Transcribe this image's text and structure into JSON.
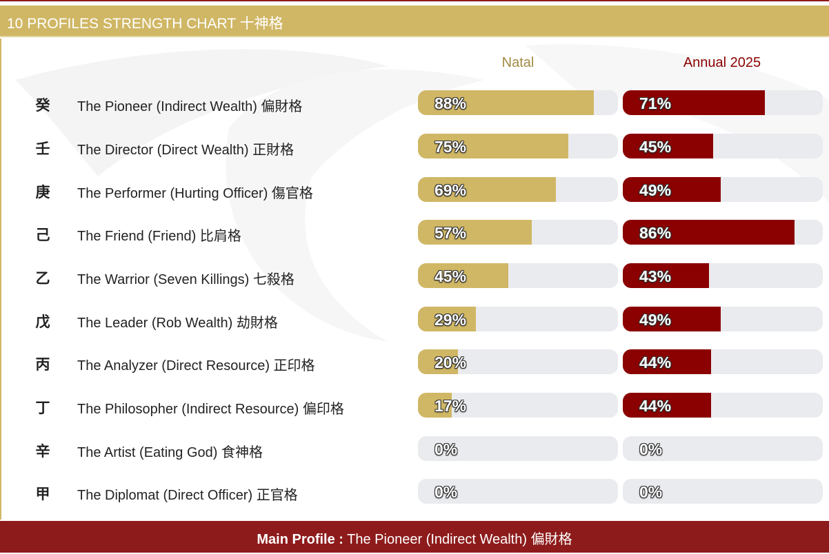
{
  "header": {
    "title": "10 PROFILES STRENGTH CHART 十神格"
  },
  "columns": {
    "natal": "Natal",
    "annual": "Annual 2025"
  },
  "colors": {
    "natal": "#d0b765",
    "annual": "#8b0000",
    "track": "#e9ebee",
    "footer": "#8e1b1b"
  },
  "chart_data": {
    "type": "bar",
    "title": "10 PROFILES STRENGTH CHART 十神格",
    "categories": [
      "The Pioneer (Indirect Wealth) 偏財格",
      "The Director (Direct Wealth) 正財格",
      "The Performer (Hurting Officer) 傷官格",
      "The Friend (Friend) 比肩格",
      "The Warrior (Seven Killings) 七殺格",
      "The Leader (Rob Wealth) 劫財格",
      "The Analyzer (Direct Resource) 正印格",
      "The Philosopher (Indirect Resource) 偏印格",
      "The Artist (Eating God) 食神格",
      "The Diplomat (Direct Officer) 正官格"
    ],
    "stems": [
      "癸",
      "壬",
      "庚",
      "己",
      "乙",
      "戊",
      "丙",
      "丁",
      "辛",
      "甲"
    ],
    "series": [
      {
        "name": "Natal",
        "values": [
          88,
          75,
          69,
          57,
          45,
          29,
          20,
          17,
          0,
          0
        ],
        "labels": [
          "88%",
          "75%",
          "69%",
          "57%",
          "45%",
          "29%",
          "20%",
          "17%",
          "0%",
          "0%"
        ]
      },
      {
        "name": "Annual 2025",
        "values": [
          71,
          45,
          49,
          86,
          43,
          49,
          44,
          44,
          0,
          0
        ],
        "labels": [
          "71%",
          "45%",
          "49%",
          "86%",
          "43%",
          "49%",
          "44%",
          "44%",
          "0%",
          "0%"
        ]
      }
    ],
    "ylim": [
      0,
      100
    ],
    "orientation": "horizontal"
  },
  "footer": {
    "key": "Main Profile :",
    "value": " The Pioneer (Indirect Wealth) 偏財格"
  }
}
